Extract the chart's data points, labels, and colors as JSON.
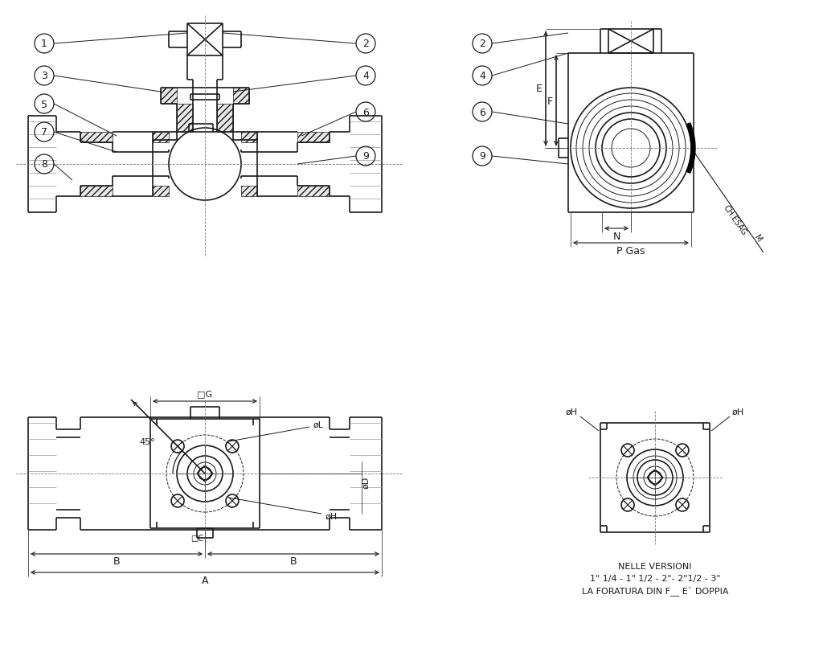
{
  "bg_color": "#ffffff",
  "line_color": "#1a1a1a",
  "note_line1": "NELLE VERSIONI",
  "note_line2": "1\" 1/4 - 1\" 1/2 - 2\"- 2\"1/2 - 3\"",
  "note_line3": "LA FORATURA DIN F__ E` DOPPIA",
  "font_size": 9,
  "font_size_small": 8,
  "font_size_tiny": 7
}
